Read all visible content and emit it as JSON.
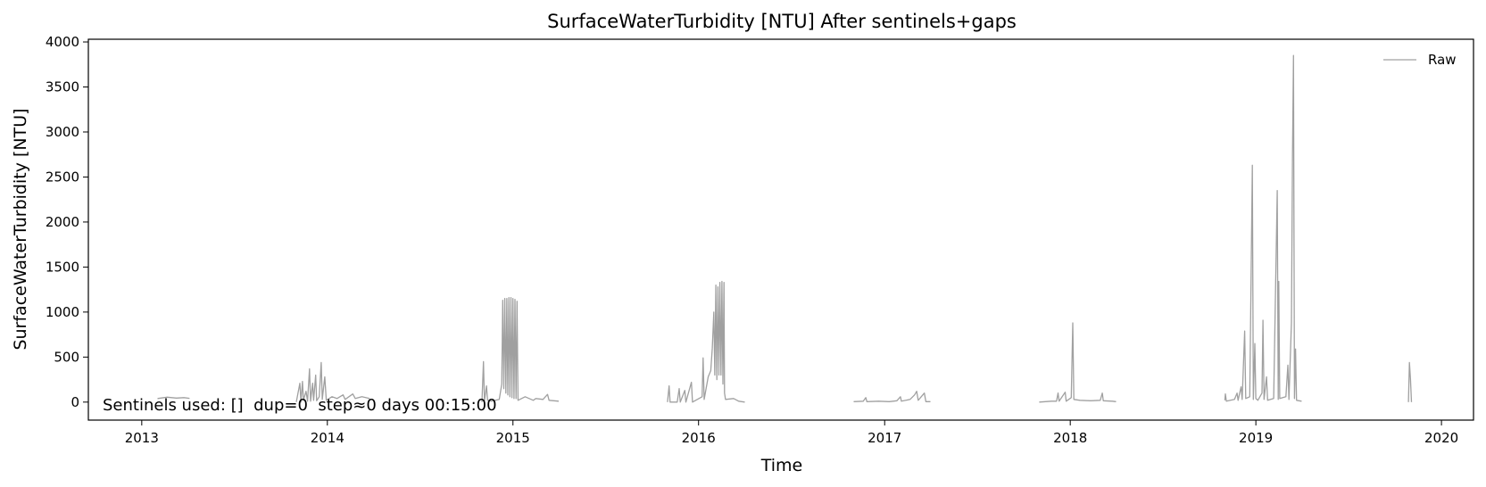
{
  "chart_data": {
    "type": "line",
    "title": "SurfaceWaterTurbidity [NTU] After sentinels+gaps",
    "xlabel": "Time",
    "ylabel": "SurfaceWaterTurbidity [NTU]",
    "xlim": [
      "2012-09-18",
      "2020-03-04"
    ],
    "ylim": [
      -200,
      4030
    ],
    "x_ticks": [
      "2013",
      "2014",
      "2015",
      "2016",
      "2017",
      "2018",
      "2019",
      "2020"
    ],
    "y_ticks": [
      0,
      500,
      1000,
      1500,
      2000,
      2500,
      3000,
      3500,
      4000
    ],
    "grid": false,
    "legend": {
      "placement": "top-right",
      "entries": [
        "Raw"
      ]
    },
    "annotation": "Sentinels used: []  dup=0  step≈0 days 00:15:00",
    "series": [
      {
        "name": "Raw",
        "color": "#a0a0a0",
        "points": [
          [
            "2013-02-01",
            40
          ],
          [
            "2013-02-20",
            55
          ],
          [
            "2013-03-10",
            45
          ],
          [
            "2013-03-25",
            50
          ],
          [
            "2013-04-05",
            42
          ],
          [
            "2013-11-01",
            0
          ],
          [
            "2013-11-08",
            210
          ],
          [
            "2013-11-10",
            0
          ],
          [
            "2013-11-13",
            230
          ],
          [
            "2013-11-15",
            20
          ],
          [
            "2013-11-20",
            120
          ],
          [
            "2013-11-23",
            10
          ],
          [
            "2013-11-27",
            370
          ],
          [
            "2013-11-29",
            10
          ],
          [
            "2013-12-03",
            210
          ],
          [
            "2013-12-05",
            20
          ],
          [
            "2013-12-09",
            300
          ],
          [
            "2013-12-11",
            15
          ],
          [
            "2013-12-16",
            60
          ],
          [
            "2013-12-20",
            440
          ],
          [
            "2013-12-22",
            30
          ],
          [
            "2013-12-27",
            280
          ],
          [
            "2013-12-30",
            20
          ],
          [
            "2014-01-10",
            60
          ],
          [
            "2014-01-20",
            40
          ],
          [
            "2014-02-01",
            80
          ],
          [
            "2014-02-05",
            30
          ],
          [
            "2014-02-20",
            90
          ],
          [
            "2014-02-25",
            40
          ],
          [
            "2014-03-10",
            60
          ],
          [
            "2014-03-25",
            40
          ],
          [
            "2014-11-01",
            0
          ],
          [
            "2014-11-04",
            450
          ],
          [
            "2014-11-06",
            10
          ],
          [
            "2014-11-10",
            180
          ],
          [
            "2014-11-12",
            20
          ],
          [
            "2014-11-20",
            10
          ],
          [
            "2014-12-05",
            30
          ],
          [
            "2014-12-10",
            200
          ],
          [
            "2014-12-12",
            1130
          ],
          [
            "2014-12-14",
            150
          ],
          [
            "2014-12-16",
            1150
          ],
          [
            "2014-12-18",
            100
          ],
          [
            "2014-12-20",
            1150
          ],
          [
            "2014-12-22",
            80
          ],
          [
            "2014-12-24",
            1160
          ],
          [
            "2014-12-26",
            60
          ],
          [
            "2014-12-28",
            1160
          ],
          [
            "2014-12-30",
            50
          ],
          [
            "2015-01-01",
            1150
          ],
          [
            "2015-01-03",
            40
          ],
          [
            "2015-01-05",
            1140
          ],
          [
            "2015-01-07",
            40
          ],
          [
            "2015-01-09",
            1120
          ],
          [
            "2015-01-11",
            20
          ],
          [
            "2015-01-25",
            60
          ],
          [
            "2015-02-10",
            20
          ],
          [
            "2015-02-15",
            40
          ],
          [
            "2015-03-01",
            30
          ],
          [
            "2015-03-10",
            85
          ],
          [
            "2015-03-13",
            20
          ],
          [
            "2015-04-01",
            10
          ],
          [
            "2015-11-01",
            0
          ],
          [
            "2015-11-04",
            180
          ],
          [
            "2015-11-06",
            0
          ],
          [
            "2015-11-20",
            0
          ],
          [
            "2015-11-24",
            150
          ],
          [
            "2015-11-26",
            0
          ],
          [
            "2015-12-05",
            130
          ],
          [
            "2015-12-07",
            0
          ],
          [
            "2015-12-18",
            220
          ],
          [
            "2015-12-20",
            0
          ],
          [
            "2016-01-08",
            60
          ],
          [
            "2016-01-10",
            490
          ],
          [
            "2016-01-12",
            30
          ],
          [
            "2016-01-20",
            280
          ],
          [
            "2016-01-25",
            350
          ],
          [
            "2016-01-28",
            600
          ],
          [
            "2016-01-31",
            1000
          ],
          [
            "2016-02-02",
            300
          ],
          [
            "2016-02-04",
            1300
          ],
          [
            "2016-02-06",
            250
          ],
          [
            "2016-02-08",
            1280
          ],
          [
            "2016-02-10",
            300
          ],
          [
            "2016-02-12",
            1330
          ],
          [
            "2016-02-14",
            300
          ],
          [
            "2016-02-16",
            1340
          ],
          [
            "2016-02-18",
            200
          ],
          [
            "2016-02-20",
            1330
          ],
          [
            "2016-02-21",
            100
          ],
          [
            "2016-02-23",
            30
          ],
          [
            "2016-03-10",
            40
          ],
          [
            "2016-03-20",
            10
          ],
          [
            "2016-04-01",
            0
          ],
          [
            "2016-11-01",
            5
          ],
          [
            "2016-11-20",
            10
          ],
          [
            "2016-11-25",
            50
          ],
          [
            "2016-11-27",
            5
          ],
          [
            "2016-12-20",
            10
          ],
          [
            "2017-01-10",
            5
          ],
          [
            "2017-01-25",
            15
          ],
          [
            "2017-02-01",
            60
          ],
          [
            "2017-02-03",
            10
          ],
          [
            "2017-02-20",
            30
          ],
          [
            "2017-03-01",
            80
          ],
          [
            "2017-03-05",
            120
          ],
          [
            "2017-03-08",
            20
          ],
          [
            "2017-03-20",
            100
          ],
          [
            "2017-03-23",
            5
          ],
          [
            "2017-04-01",
            5
          ],
          [
            "2017-11-01",
            0
          ],
          [
            "2017-11-25",
            10
          ],
          [
            "2017-12-05",
            10
          ],
          [
            "2017-12-08",
            100
          ],
          [
            "2017-12-10",
            10
          ],
          [
            "2017-12-22",
            110
          ],
          [
            "2017-12-24",
            10
          ],
          [
            "2018-01-03",
            50
          ],
          [
            "2018-01-06",
            880
          ],
          [
            "2018-01-08",
            30
          ],
          [
            "2018-01-20",
            20
          ],
          [
            "2018-02-10",
            15
          ],
          [
            "2018-03-01",
            20
          ],
          [
            "2018-03-05",
            100
          ],
          [
            "2018-03-07",
            15
          ],
          [
            "2018-03-25",
            10
          ],
          [
            "2018-04-01",
            5
          ],
          [
            "2018-11-01",
            20
          ],
          [
            "2018-11-02",
            90
          ],
          [
            "2018-11-04",
            10
          ],
          [
            "2018-11-20",
            30
          ],
          [
            "2018-11-25",
            100
          ],
          [
            "2018-11-27",
            20
          ],
          [
            "2018-12-03",
            170
          ],
          [
            "2018-12-05",
            30
          ],
          [
            "2018-12-10",
            790
          ],
          [
            "2018-12-12",
            40
          ],
          [
            "2018-12-20",
            60
          ],
          [
            "2018-12-25",
            2630
          ],
          [
            "2018-12-27",
            30
          ],
          [
            "2018-12-30",
            650
          ],
          [
            "2019-01-01",
            40
          ],
          [
            "2019-01-05",
            20
          ],
          [
            "2019-01-13",
            100
          ],
          [
            "2019-01-15",
            910
          ],
          [
            "2019-01-17",
            30
          ],
          [
            "2019-01-22",
            280
          ],
          [
            "2019-01-24",
            20
          ],
          [
            "2019-02-05",
            40
          ],
          [
            "2019-02-12",
            2350
          ],
          [
            "2019-02-14",
            30
          ],
          [
            "2019-02-15",
            1340
          ],
          [
            "2019-02-17",
            40
          ],
          [
            "2019-03-01",
            60
          ],
          [
            "2019-03-05",
            410
          ],
          [
            "2019-03-07",
            30
          ],
          [
            "2019-03-12",
            880
          ],
          [
            "2019-03-14",
            2750
          ],
          [
            "2019-03-16",
            3850
          ],
          [
            "2019-03-18",
            40
          ],
          [
            "2019-03-20",
            590
          ],
          [
            "2019-03-22",
            20
          ],
          [
            "2019-04-01",
            10
          ],
          [
            "2019-10-28",
            0
          ],
          [
            "2019-10-30",
            440
          ],
          [
            "2019-11-01",
            250
          ],
          [
            "2019-11-03",
            0
          ]
        ]
      }
    ]
  }
}
